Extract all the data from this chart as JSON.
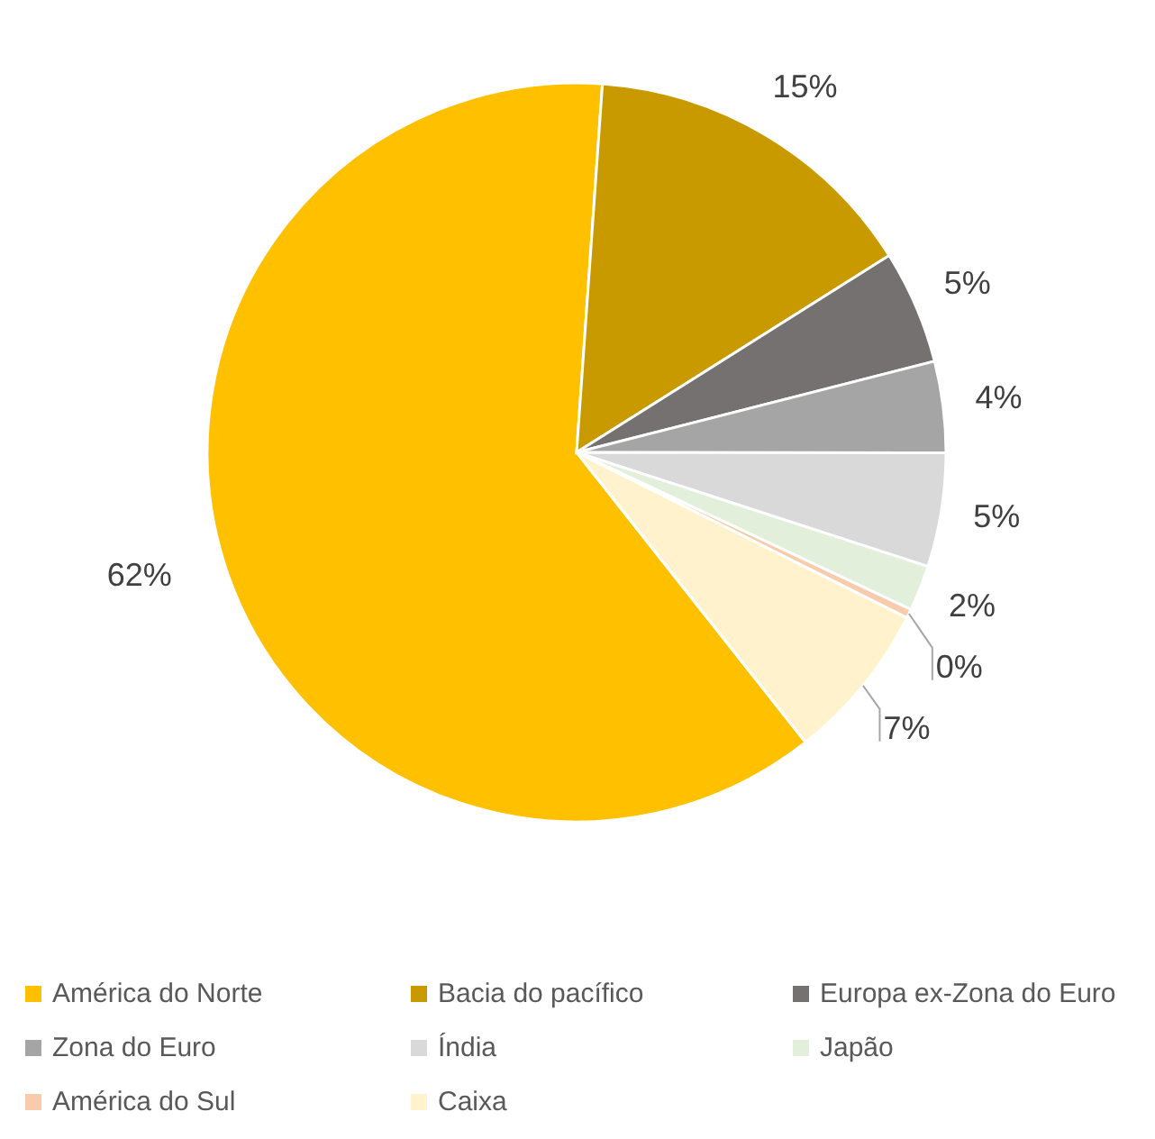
{
  "chart_data": {
    "type": "pie",
    "categories": [
      "América do Norte",
      "Bacia do pacífico",
      "Europa ex-Zona do Euro",
      "Zona do Euro",
      "Índia",
      "Japão",
      "América do Sul",
      "Caixa"
    ],
    "values": [
      62,
      15,
      5,
      4,
      5,
      2,
      0.4,
      7
    ],
    "value_labels": [
      "62%",
      "15%",
      "5%",
      "4%",
      "5%",
      "2%",
      "0%",
      "7%"
    ],
    "colors": [
      "#ffc000",
      "#c99a00",
      "#767171",
      "#a5a5a5",
      "#d9d9d9",
      "#e2efda",
      "#f8cbad",
      "#fff2cc"
    ],
    "legend": "bottom"
  }
}
